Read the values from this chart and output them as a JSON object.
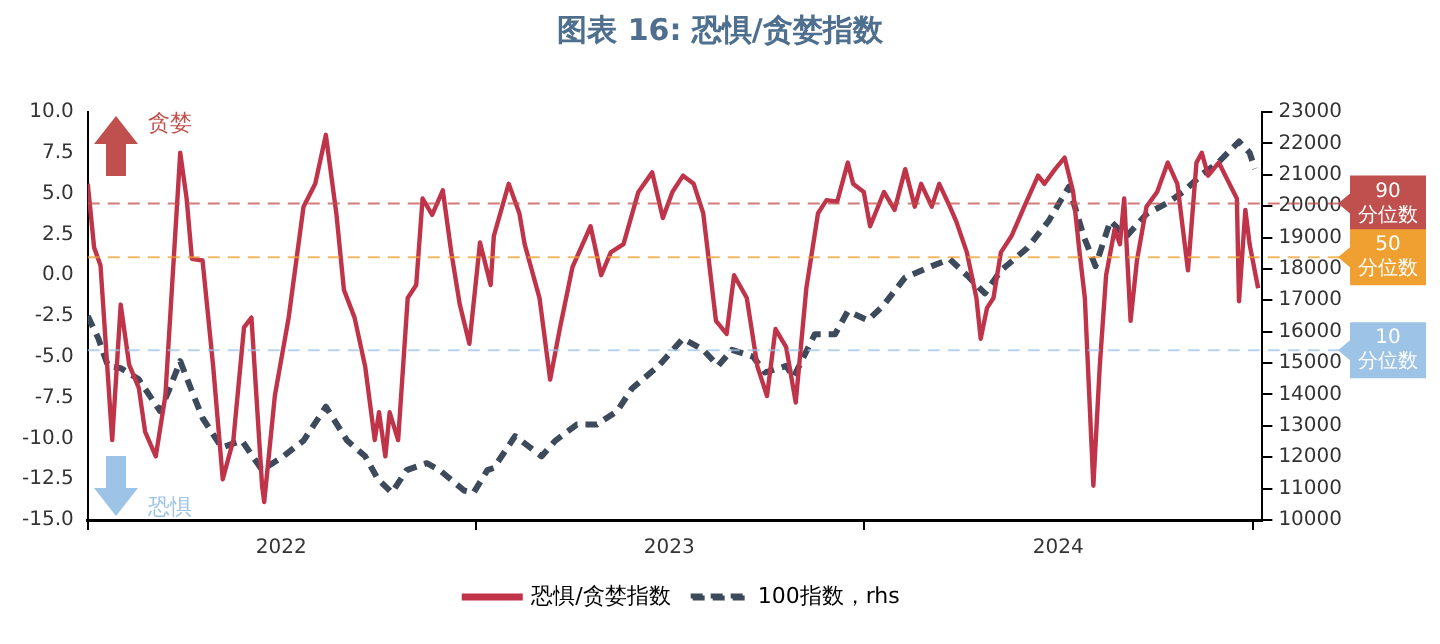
{
  "chart_data": {
    "type": "line",
    "title": "图表 16: 恐惧/贪婪指数",
    "xlim": [
      "2022-01-01",
      "2025-01-10"
    ],
    "xticks": [
      {
        "value": "2022-01-01",
        "label": null
      },
      {
        "value": "2022-07-02",
        "label": "2022"
      },
      {
        "value": "2023-01-01",
        "label": null
      },
      {
        "value": "2023-07-02",
        "label": "2023"
      },
      {
        "value": "2024-01-01",
        "label": null
      },
      {
        "value": "2024-07-02",
        "label": "2024"
      },
      {
        "value": "2025-01-01",
        "label": null
      }
    ],
    "ylim": [
      -15,
      10
    ],
    "yticks": [
      {
        "value": -15,
        "label": "-15.0"
      },
      {
        "value": -12.5,
        "label": "-12.5"
      },
      {
        "value": -10,
        "label": "-10.0"
      },
      {
        "value": -7.5,
        "label": "-7.5"
      },
      {
        "value": -5,
        "label": "-5.0"
      },
      {
        "value": -2.5,
        "label": "-2.5"
      },
      {
        "value": 0,
        "label": "0.0"
      },
      {
        "value": 2.5,
        "label": "2.5"
      },
      {
        "value": 5,
        "label": "5.0"
      },
      {
        "value": 7.5,
        "label": "7.5"
      },
      {
        "value": 10,
        "label": "10.0"
      }
    ],
    "y2lim": [
      10000,
      23000
    ],
    "y2ticks": [
      10000,
      11000,
      12000,
      13000,
      14000,
      15000,
      16000,
      17000,
      18000,
      19000,
      20000,
      21000,
      22000,
      23000
    ],
    "legend": "bottom",
    "marker": "none",
    "annotations": [
      "贪婪",
      "恐惧"
    ],
    "ref_lines": [
      {
        "axis": "y",
        "value": 4.4,
        "label": "90\n分位数",
        "color": "#c0504d",
        "line_style": "dashed"
      },
      {
        "axis": "y",
        "value": 1.1,
        "label": "50\n分位数",
        "color": "#f0a030",
        "line_style": "dashed"
      },
      {
        "axis": "y",
        "value": -4.6,
        "label": "10\n分位数",
        "color": "#9dc3e6",
        "line_style": "dashed"
      }
    ],
    "series": [
      {
        "name": "恐惧/贪婪指数",
        "color": "#c0344a",
        "line_style": "solid",
        "x": [
          "2022-01-01",
          "2022-01-07",
          "2022-01-13",
          "2022-01-24",
          "2022-02-01",
          "2022-02-09",
          "2022-02-18",
          "2022-02-24",
          "2022-03-06",
          "2022-03-15",
          "2022-03-29",
          "2022-04-04",
          "2022-04-09",
          "2022-04-19",
          "2022-04-29",
          "2022-05-08",
          "2022-05-18",
          "2022-05-28",
          "2022-06-04",
          "2022-06-14",
          "2022-06-16",
          "2022-06-26",
          "2022-07-09",
          "2022-07-23",
          "2022-08-03",
          "2022-08-13",
          "2022-08-23",
          "2022-08-30",
          "2022-09-09",
          "2022-09-19",
          "2022-09-28",
          "2022-10-02",
          "2022-10-08",
          "2022-10-12",
          "2022-10-20",
          "2022-10-29",
          "2022-11-06",
          "2022-11-12",
          "2022-11-21",
          "2022-12-01",
          "2022-12-09",
          "2022-12-17",
          "2022-12-26",
          "2023-01-05",
          "2023-01-15",
          "2023-01-18",
          "2023-02-01",
          "2023-02-11",
          "2023-02-16",
          "2023-03-02",
          "2023-03-12",
          "2023-03-21",
          "2023-04-02",
          "2023-04-19",
          "2023-04-29",
          "2023-05-08",
          "2023-05-20",
          "2023-06-03",
          "2023-06-16",
          "2023-06-26",
          "2023-07-05",
          "2023-07-15",
          "2023-07-25",
          "2023-08-03",
          "2023-08-15",
          "2023-08-25",
          "2023-09-01",
          "2023-09-13",
          "2023-09-23",
          "2023-10-02",
          "2023-10-10",
          "2023-10-20",
          "2023-10-29",
          "2023-11-08",
          "2023-11-19",
          "2023-11-27",
          "2023-12-07",
          "2023-12-17",
          "2023-12-22",
          "2024-01-01",
          "2024-01-07",
          "2024-01-20",
          "2024-01-30",
          "2024-02-09",
          "2024-02-18",
          "2024-02-24",
          "2024-03-05",
          "2024-03-12",
          "2024-03-22",
          "2024-03-28",
          "2024-04-07",
          "2024-04-16",
          "2024-04-20",
          "2024-04-26",
          "2024-05-02",
          "2024-05-09",
          "2024-05-19",
          "2024-05-31",
          "2024-06-13",
          "2024-06-19",
          "2024-06-29",
          "2024-07-08",
          "2024-07-16",
          "2024-07-22",
          "2024-07-27",
          "2024-08-04",
          "2024-08-10",
          "2024-08-16",
          "2024-08-24",
          "2024-08-29",
          "2024-09-02",
          "2024-09-08",
          "2024-09-14",
          "2024-09-23",
          "2024-10-03",
          "2024-10-13",
          "2024-10-22",
          "2024-11-01",
          "2024-11-09",
          "2024-11-14",
          "2024-11-20",
          "2024-11-30",
          "2024-12-10",
          "2024-12-17",
          "2024-12-19",
          "2024-12-25",
          "2024-12-29",
          "2025-01-06"
        ],
        "values": [
          5.6,
          1.7,
          0.6,
          -10.1,
          -1.8,
          -5.5,
          -6.9,
          -9.6,
          -11.1,
          -7.4,
          7.5,
          4.7,
          1.0,
          0.9,
          -5.6,
          -12.5,
          -10.1,
          -3.2,
          -2.6,
          -12.9,
          -13.9,
          -7.4,
          -2.6,
          4.2,
          5.6,
          8.6,
          3.7,
          -0.9,
          -2.6,
          -5.6,
          -10.1,
          -8.4,
          -11.1,
          -8.4,
          -10.1,
          -1.4,
          -0.6,
          4.7,
          3.7,
          5.2,
          1.4,
          -1.8,
          -4.2,
          2.0,
          -0.6,
          2.4,
          5.6,
          3.8,
          1.9,
          -1.4,
          -6.4,
          -3.3,
          0.5,
          3.0,
          0.0,
          1.4,
          1.9,
          5.1,
          6.3,
          3.5,
          5.1,
          6.1,
          5.6,
          3.8,
          -2.8,
          -3.6,
          0.0,
          -1.4,
          -5.6,
          -7.4,
          -3.3,
          -4.4,
          -7.8,
          -0.8,
          3.8,
          4.6,
          4.5,
          6.9,
          5.6,
          5.1,
          3.0,
          5.1,
          4.0,
          6.5,
          4.2,
          5.6,
          4.2,
          5.6,
          4.2,
          3.3,
          1.4,
          -1.4,
          -3.9,
          -2.0,
          -1.4,
          1.4,
          2.4,
          4.2,
          6.1,
          5.6,
          6.5,
          7.2,
          5.1,
          1.4,
          -1.4,
          -12.9,
          -5.6,
          0.0,
          2.8,
          1.9,
          4.7,
          -2.8,
          0.9,
          4.2,
          5.1,
          6.9,
          5.6,
          0.3,
          6.9,
          7.5,
          6.1,
          6.9,
          5.6,
          4.7,
          -1.6,
          4.0,
          1.9,
          -0.8
        ]
      },
      {
        "name": "100指数，rhs",
        "color": "#3d4a5c",
        "line_style": "dashed",
        "axis": "y2",
        "x": [
          "2022-01-01",
          "2022-01-11",
          "2022-01-20",
          "2022-02-01",
          "2022-02-18",
          "2022-03-10",
          "2022-03-19",
          "2022-03-29",
          "2022-04-08",
          "2022-04-19",
          "2022-05-07",
          "2022-05-26",
          "2022-06-14",
          "2022-07-04",
          "2022-07-23",
          "2022-08-13",
          "2022-09-02",
          "2022-09-19",
          "2022-10-01",
          "2022-10-14",
          "2022-10-28",
          "2022-11-16",
          "2022-11-28",
          "2022-12-21",
          "2022-12-30",
          "2023-01-12",
          "2023-01-18",
          "2023-02-07",
          "2023-03-04",
          "2023-03-17",
          "2023-04-06",
          "2023-04-25",
          "2023-05-14",
          "2023-05-28",
          "2023-06-22",
          "2023-07-15",
          "2023-08-03",
          "2023-08-17",
          "2023-08-30",
          "2023-09-19",
          "2023-09-30",
          "2023-10-20",
          "2023-10-27",
          "2023-11-16",
          "2023-12-05",
          "2023-12-17",
          "2024-01-05",
          "2024-01-20",
          "2024-02-09",
          "2024-03-05",
          "2024-03-22",
          "2024-04-07",
          "2024-04-24",
          "2024-05-09",
          "2024-06-03",
          "2024-06-23",
          "2024-07-12",
          "2024-07-26",
          "2024-08-06",
          "2024-08-20",
          "2024-09-04",
          "2024-09-23",
          "2024-10-13",
          "2024-10-28",
          "2024-11-13",
          "2024-11-30",
          "2024-12-19",
          "2024-12-29",
          "2025-01-03"
        ],
        "values": [
          16500,
          15780,
          14910,
          14840,
          14480,
          13470,
          14190,
          15060,
          14190,
          13250,
          12310,
          12530,
          11590,
          12030,
          12530,
          13610,
          12530,
          12030,
          11300,
          10870,
          11590,
          11810,
          11590,
          10940,
          10870,
          11590,
          11660,
          12670,
          12030,
          12530,
          13040,
          13040,
          13470,
          14190,
          14910,
          15780,
          15420,
          14910,
          15420,
          15200,
          14700,
          14910,
          14550,
          15920,
          15920,
          16650,
          16360,
          16860,
          17730,
          18090,
          18310,
          17800,
          17220,
          17950,
          18670,
          19530,
          20620,
          19030,
          18090,
          19530,
          19030,
          19750,
          20110,
          20470,
          20980,
          21410,
          22060,
          21700,
          21190
        ]
      }
    ]
  }
}
